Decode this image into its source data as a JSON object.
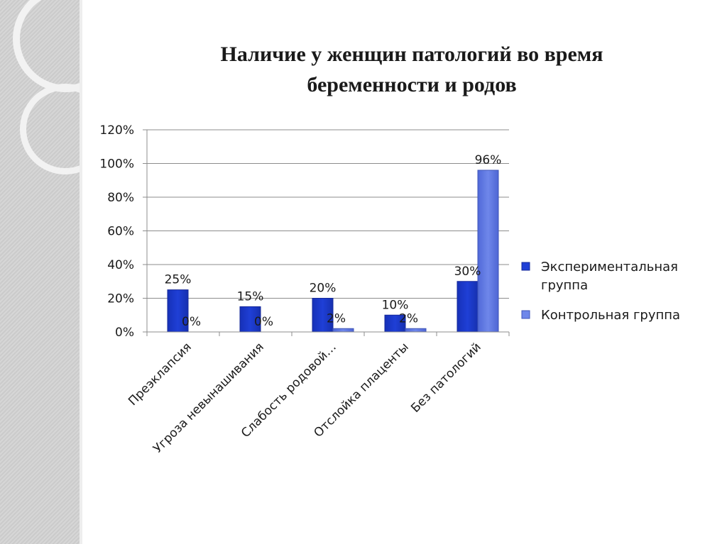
{
  "chart_data": {
    "type": "bar",
    "title": [
      "Наличие у женщин патологий во время",
      "беременности и родов"
    ],
    "categories": [
      "Преэклапсия",
      "Угроза невынашивания",
      "Слабость родовой…",
      "Отслойка плаценты",
      "Без патологий"
    ],
    "series": [
      {
        "name": "Экспериментальная группа",
        "name_lines": [
          "Экспериментальная",
          "группа"
        ],
        "values": [
          25,
          15,
          20,
          10,
          30
        ],
        "labels": [
          "25%",
          "15%",
          "20%",
          "10%",
          "30%"
        ],
        "color": "#1f3fd6"
      },
      {
        "name": "Контрольная группа",
        "name_lines": [
          "Контрольная группа"
        ],
        "values": [
          0,
          0,
          2,
          2,
          96
        ],
        "labels": [
          "0%",
          "0%",
          "2%",
          "2%",
          "96%"
        ],
        "color": "#6f87ea"
      }
    ],
    "y_ticks": [
      "0%",
      "20%",
      "40%",
      "60%",
      "80%",
      "100%",
      "120%"
    ],
    "ylim": [
      0,
      120
    ],
    "grid": true,
    "legend_position": "right"
  }
}
